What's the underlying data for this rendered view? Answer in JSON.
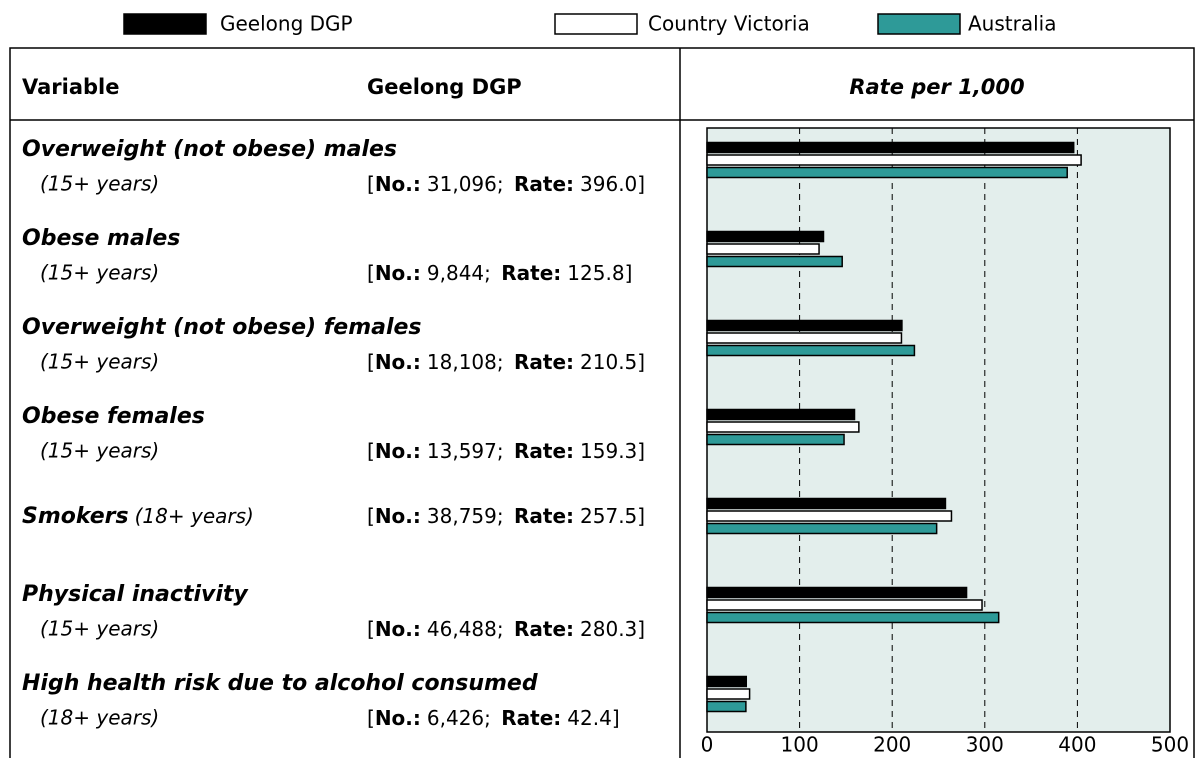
{
  "chart_data": {
    "type": "bar",
    "orientation": "horizontal",
    "x_title": "Rate per 1,000",
    "xlim": [
      0,
      500
    ],
    "xticks": [
      0,
      100,
      200,
      300,
      400,
      500
    ],
    "grid": true,
    "background": "#e3eeec",
    "series": [
      {
        "name": "Geelong DGP",
        "color": "#000000",
        "values": [
          396,
          125.8,
          210.5,
          159.3,
          257.5,
          280.3,
          42.4
        ],
        "value_labels": [
          "396.0",
          "125.8",
          "210.5",
          "159.3",
          "257.5",
          "280.3",
          "42.4"
        ]
      },
      {
        "name": "Country Victoria",
        "color": "#ffffff",
        "values": [
          404,
          121,
          210,
          164,
          264,
          297,
          46
        ]
      },
      {
        "name": "Australia",
        "color": "#2e9a98",
        "values": [
          389,
          146,
          224,
          148,
          248,
          315,
          42
        ]
      }
    ]
  },
  "table": {
    "headers": [
      "Variable",
      "Geelong DGP"
    ],
    "no_label": "No.:",
    "rate_label": "Rate:",
    "punctuation": [
      "[",
      "; ",
      "]"
    ],
    "rows": [
      {
        "label": "Overweight (not obese) males",
        "sub": "(15+ years)",
        "no": "31,096"
      },
      {
        "label": "Obese males",
        "sub": "(15+ years)",
        "no": "9,844"
      },
      {
        "label": "Overweight (not obese) females",
        "sub": "(15+ years)",
        "no": "18,108"
      },
      {
        "label": "Obese females",
        "sub": "(15+ years)",
        "no": "13,597"
      },
      {
        "label": "Smokers",
        "sub": "(18+ years)",
        "no": "38,759",
        "inline": true
      },
      {
        "label": "Physical inactivity",
        "sub": "(15+ years)",
        "no": "46,488"
      },
      {
        "label": "High health risk due to alcohol consumed",
        "sub": "(18+ years)",
        "no": "6,426"
      }
    ]
  }
}
